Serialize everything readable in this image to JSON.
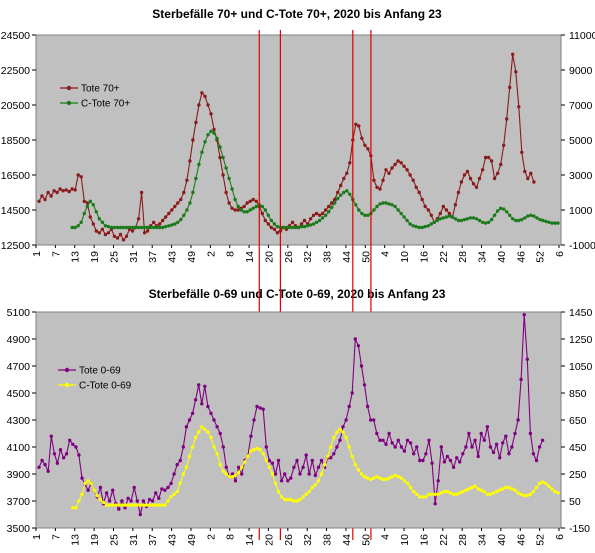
{
  "chart_data": [
    {
      "type": "line",
      "title": "Sterbefälle 70+ und C-Tote 70+, 2020 bis Anfang 23",
      "left_axis": {
        "ylim": [
          12500,
          24500
        ],
        "ticks": [
          "12500",
          "14500",
          "16500",
          "18500",
          "20500",
          "22500",
          "24500"
        ]
      },
      "right_axis": {
        "ylim": [
          -1000,
          11000
        ],
        "ticks": [
          "-1000",
          "1000",
          "3000",
          "5000",
          "7000",
          "9000",
          "11000"
        ]
      },
      "x_tick_labels": [
        "1",
        "7",
        "13",
        "19",
        "25",
        "31",
        "37",
        "43",
        "49",
        "2",
        "8",
        "14",
        "20",
        "26",
        "32",
        "38",
        "44",
        "50",
        "4",
        "10",
        "16",
        "22",
        "28",
        "34",
        "40",
        "46",
        "52",
        "6"
      ],
      "legend": {
        "position": "top-left",
        "entries": [
          "Tote 70+",
          "C-Tote 70+"
        ]
      },
      "grid": false,
      "series": [
        {
          "name": "Tote 70+",
          "axis": "left",
          "color": "#8b1a1a",
          "values": [
            15000,
            15300,
            15100,
            15500,
            15300,
            15600,
            15500,
            15700,
            15600,
            15650,
            15550,
            15700,
            15650,
            16500,
            16400,
            15000,
            14900,
            14100,
            13700,
            13300,
            13200,
            13400,
            13100,
            13200,
            13400,
            13000,
            12900,
            13100,
            12800,
            13000,
            13400,
            13300,
            13500,
            14000,
            15500,
            13200,
            13300,
            13600,
            13800,
            13600,
            13700,
            13900,
            14100,
            14300,
            14500,
            14700,
            14900,
            15100,
            15500,
            16200,
            17300,
            18500,
            19500,
            20500,
            21200,
            21000,
            20500,
            20000,
            19100,
            18500,
            17500,
            16500,
            15500,
            14900,
            14600,
            14500,
            14500,
            14600,
            14700,
            14900,
            15000,
            15100,
            15000,
            14700,
            14300,
            13900,
            13700,
            13500,
            13400,
            13200,
            13300,
            13500,
            13400,
            13600,
            13800,
            13600,
            13500,
            13700,
            13900,
            13700,
            14000,
            14200,
            14300,
            14200,
            14300,
            14500,
            14700,
            14900,
            15100,
            15500,
            15900,
            16300,
            16600,
            17200,
            18500,
            19400,
            19300,
            18600,
            18200,
            18000,
            17600,
            16200,
            15800,
            15700,
            16200,
            16800,
            16600,
            16900,
            17100,
            17300,
            17200,
            17000,
            16800,
            16500,
            16200,
            15800,
            15500,
            15100,
            14700,
            14500,
            14200,
            13800,
            14000,
            14300,
            14700,
            14500,
            14300,
            14100,
            14800,
            15500,
            16100,
            16500,
            16700,
            16300,
            16000,
            15800,
            16300,
            16800,
            17500,
            17500,
            17300,
            16300,
            16600,
            17100,
            18200,
            19700,
            21500,
            23400,
            22400,
            20400,
            17800,
            16700,
            16300,
            16600,
            16100
          ]
        },
        {
          "name": "C-Tote 70+",
          "axis": "right",
          "color": "#1a7a1a",
          "values": [
            null,
            null,
            null,
            null,
            null,
            null,
            null,
            null,
            null,
            null,
            null,
            0,
            0,
            100,
            300,
            800,
            1200,
            1500,
            1300,
            900,
            500,
            300,
            100,
            50,
            0,
            0,
            0,
            0,
            0,
            0,
            0,
            0,
            0,
            0,
            0,
            0,
            0,
            0,
            0,
            0,
            0,
            0,
            50,
            100,
            150,
            200,
            300,
            450,
            700,
            1000,
            1400,
            2000,
            2800,
            3600,
            4300,
            4900,
            5300,
            5500,
            5400,
            5100,
            4600,
            4000,
            3400,
            2800,
            2200,
            1600,
            1200,
            1000,
            900,
            900,
            1000,
            1100,
            1200,
            1300,
            1200,
            1000,
            700,
            400,
            200,
            50,
            0,
            0,
            0,
            0,
            0,
            0,
            0,
            50,
            50,
            100,
            150,
            200,
            300,
            400,
            550,
            700,
            900,
            1150,
            1400,
            1650,
            1850,
            2000,
            2100,
            1900,
            1600,
            1300,
            1000,
            800,
            700,
            700,
            800,
            1000,
            1200,
            1350,
            1400,
            1400,
            1350,
            1300,
            1200,
            1000,
            800,
            600,
            400,
            200,
            100,
            50,
            0,
            0,
            50,
            100,
            200,
            300,
            400,
            500,
            550,
            600,
            650,
            600,
            500,
            400,
            400,
            450,
            500,
            550,
            550,
            500,
            400,
            300,
            250,
            300,
            450,
            700,
            950,
            1100,
            1050,
            900,
            700,
            500,
            400,
            400,
            450,
            550,
            650,
            700,
            650,
            550,
            450,
            400,
            350,
            300,
            250,
            250,
            250
          ]
        }
      ],
      "vertical_markers_index": [
        73,
        80,
        104,
        110
      ]
    },
    {
      "type": "line",
      "title": "Sterbefälle 0-69 und C-Tote 0-69, 2020 bis Anfang 23",
      "left_axis": {
        "ylim": [
          3500,
          5100
        ],
        "ticks": [
          "3500",
          "3700",
          "3900",
          "4100",
          "4300",
          "4500",
          "4700",
          "4900",
          "5100"
        ]
      },
      "right_axis": {
        "ylim": [
          -150,
          1450
        ],
        "ticks": [
          "-150",
          "50",
          "250",
          "450",
          "650",
          "850",
          "1050",
          "1250",
          "1450"
        ]
      },
      "x_tick_labels": [
        "1",
        "7",
        "13",
        "19",
        "25",
        "31",
        "37",
        "43",
        "49",
        "2",
        "8",
        "14",
        "20",
        "26",
        "32",
        "38",
        "44",
        "50",
        "4",
        "10",
        "16",
        "22",
        "28",
        "34",
        "40",
        "46",
        "52",
        "6"
      ],
      "legend": {
        "position": "top-left",
        "entries": [
          "Tote 0-69",
          "C-Tote 0-69"
        ]
      },
      "grid": false,
      "series": [
        {
          "name": "Tote 0-69",
          "axis": "left",
          "color": "#800080",
          "values": [
            3950,
            4000,
            3970,
            3920,
            4180,
            4050,
            3980,
            4080,
            4020,
            4050,
            4150,
            4120,
            4100,
            4040,
            3870,
            3820,
            3780,
            3830,
            3780,
            3730,
            3800,
            3680,
            3760,
            3700,
            3780,
            3680,
            3640,
            3700,
            3650,
            3720,
            3700,
            3800,
            3700,
            3600,
            3700,
            3660,
            3710,
            3700,
            3760,
            3720,
            3790,
            3780,
            3800,
            3830,
            3900,
            3970,
            4000,
            4100,
            4250,
            4300,
            4350,
            4450,
            4560,
            4420,
            4550,
            4400,
            4350,
            4300,
            4250,
            4200,
            4100,
            3950,
            3880,
            3900,
            3850,
            3950,
            3900,
            4000,
            4030,
            4180,
            4300,
            4400,
            4390,
            4380,
            4100,
            4000,
            3980,
            3900,
            4000,
            3850,
            3900,
            3850,
            3870,
            3950,
            4000,
            3900,
            3950,
            4040,
            3900,
            4000,
            3890,
            3950,
            4000,
            3950,
            4020,
            4020,
            4050,
            4100,
            4150,
            4250,
            4300,
            4400,
            4500,
            4900,
            4850,
            4700,
            4560,
            4400,
            4300,
            4300,
            4200,
            4150,
            4150,
            4120,
            4200,
            4130,
            4100,
            4150,
            4100,
            4070,
            4150,
            4130,
            4050,
            4100,
            4000,
            4000,
            4050,
            4150,
            3980,
            3680,
            3850,
            4100,
            3990,
            4030,
            4000,
            3950,
            4020,
            3990,
            4050,
            4100,
            4200,
            4100,
            4150,
            4030,
            4200,
            4150,
            4250,
            4100,
            4060,
            4120,
            4020,
            4130,
            4180,
            4050,
            4100,
            4200,
            4300,
            4600,
            5080,
            4750,
            4200,
            4050,
            4000,
            4100,
            4150
          ]
        },
        {
          "name": "C-Tote 0-69",
          "axis": "right",
          "color": "#ffff00",
          "values": [
            null,
            null,
            null,
            null,
            null,
            null,
            null,
            null,
            null,
            null,
            null,
            0,
            0,
            50,
            100,
            180,
            200,
            180,
            130,
            90,
            60,
            40,
            20,
            20,
            20,
            20,
            20,
            20,
            20,
            20,
            20,
            20,
            20,
            20,
            20,
            20,
            20,
            20,
            20,
            20,
            20,
            20,
            50,
            80,
            100,
            120,
            180,
            250,
            300,
            380,
            450,
            520,
            560,
            600,
            580,
            560,
            520,
            450,
            400,
            320,
            270,
            250,
            230,
            230,
            240,
            260,
            300,
            340,
            380,
            420,
            430,
            440,
            430,
            400,
            350,
            300,
            250,
            180,
            120,
            80,
            60,
            60,
            60,
            50,
            50,
            60,
            80,
            100,
            120,
            150,
            170,
            200,
            250,
            320,
            380,
            450,
            520,
            560,
            580,
            560,
            520,
            450,
            380,
            320,
            280,
            250,
            230,
            220,
            210,
            220,
            230,
            220,
            210,
            210,
            220,
            230,
            240,
            230,
            220,
            200,
            180,
            150,
            120,
            100,
            80,
            80,
            80,
            100,
            100,
            100,
            100,
            110,
            120,
            120,
            110,
            100,
            100,
            110,
            120,
            130,
            140,
            150,
            160,
            140,
            130,
            120,
            100,
            100,
            110,
            120,
            130,
            140,
            150,
            150,
            140,
            130,
            110,
            100,
            90,
            90,
            100,
            120,
            150,
            180,
            190,
            180,
            160,
            140,
            120,
            110
          ]
        }
      ],
      "vertical_markers_index": [
        73,
        80,
        104,
        110
      ]
    }
  ]
}
